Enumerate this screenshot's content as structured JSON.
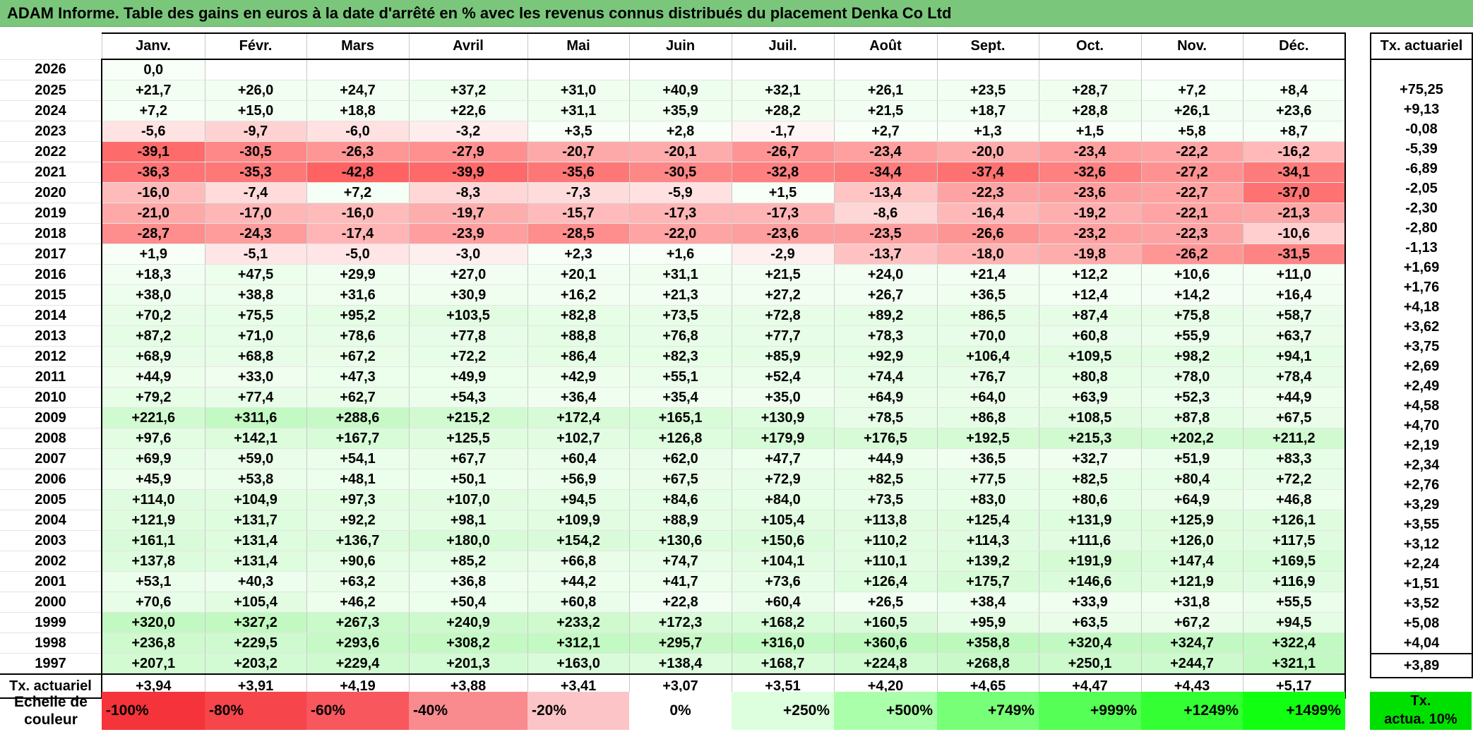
{
  "title": "ADAM Informe. Table des gains en euros à la date d'arrêté en % avec les revenus connus distribués du placement Denka Co Ltd",
  "months": [
    "Janv.",
    "Févr.",
    "Mars",
    "Avril",
    "Mai",
    "Juin",
    "Juil.",
    "Août",
    "Sept.",
    "Oct.",
    "Nov.",
    "Déc."
  ],
  "annual_header": "Tx. actuariel",
  "rows": [
    {
      "year": "2026",
      "values": [
        "0,0",
        "",
        "",
        "",
        "",
        "",
        "",
        "",
        "",
        "",
        "",
        ""
      ],
      "annual": ""
    },
    {
      "year": "2025",
      "values": [
        "+21,7",
        "+26,0",
        "+24,7",
        "+37,2",
        "+31,0",
        "+40,9",
        "+32,1",
        "+26,1",
        "+23,5",
        "+28,7",
        "+7,2",
        "+8,4"
      ],
      "annual": "+75,25"
    },
    {
      "year": "2024",
      "values": [
        "+7,2",
        "+15,0",
        "+18,8",
        "+22,6",
        "+31,1",
        "+35,9",
        "+28,2",
        "+21,5",
        "+18,7",
        "+28,8",
        "+26,1",
        "+23,6"
      ],
      "annual": "+9,13"
    },
    {
      "year": "2023",
      "values": [
        "-5,6",
        "-9,7",
        "-6,0",
        "-3,2",
        "+3,5",
        "+2,8",
        "-1,7",
        "+2,7",
        "+1,3",
        "+1,5",
        "+5,8",
        "+8,7"
      ],
      "annual": "-0,08"
    },
    {
      "year": "2022",
      "values": [
        "-39,1",
        "-30,5",
        "-26,3",
        "-27,9",
        "-20,7",
        "-20,1",
        "-26,7",
        "-23,4",
        "-20,0",
        "-23,4",
        "-22,2",
        "-16,2"
      ],
      "annual": "-5,39"
    },
    {
      "year": "2021",
      "values": [
        "-36,3",
        "-35,3",
        "-42,8",
        "-39,9",
        "-35,6",
        "-30,5",
        "-32,8",
        "-34,4",
        "-37,4",
        "-32,6",
        "-27,2",
        "-34,1"
      ],
      "annual": "-6,89"
    },
    {
      "year": "2020",
      "values": [
        "-16,0",
        "-7,4",
        "+7,2",
        "-8,3",
        "-7,3",
        "-5,9",
        "+1,5",
        "-13,4",
        "-22,3",
        "-23,6",
        "-22,7",
        "-37,0"
      ],
      "annual": "-2,05"
    },
    {
      "year": "2019",
      "values": [
        "-21,0",
        "-17,0",
        "-16,0",
        "-19,7",
        "-15,7",
        "-17,3",
        "-17,3",
        "-8,6",
        "-16,4",
        "-19,2",
        "-22,1",
        "-21,3"
      ],
      "annual": "-2,30"
    },
    {
      "year": "2018",
      "values": [
        "-28,7",
        "-24,3",
        "-17,4",
        "-23,9",
        "-28,5",
        "-22,0",
        "-23,6",
        "-23,5",
        "-26,6",
        "-23,2",
        "-22,3",
        "-10,6"
      ],
      "annual": "-2,80"
    },
    {
      "year": "2017",
      "values": [
        "+1,9",
        "-5,1",
        "-5,0",
        "-3,0",
        "+2,3",
        "+1,6",
        "-2,9",
        "-13,7",
        "-18,0",
        "-19,8",
        "-26,2",
        "-31,5"
      ],
      "annual": "-1,13"
    },
    {
      "year": "2016",
      "values": [
        "+18,3",
        "+47,5",
        "+29,9",
        "+27,0",
        "+20,1",
        "+31,1",
        "+21,5",
        "+24,0",
        "+21,4",
        "+12,2",
        "+10,6",
        "+11,0"
      ],
      "annual": "+1,69"
    },
    {
      "year": "2015",
      "values": [
        "+38,0",
        "+38,8",
        "+31,6",
        "+30,9",
        "+16,2",
        "+21,3",
        "+27,2",
        "+26,7",
        "+36,5",
        "+12,4",
        "+14,2",
        "+16,4"
      ],
      "annual": "+1,76"
    },
    {
      "year": "2014",
      "values": [
        "+70,2",
        "+75,5",
        "+95,2",
        "+103,5",
        "+82,8",
        "+73,5",
        "+72,8",
        "+89,2",
        "+86,5",
        "+87,4",
        "+75,8",
        "+58,7"
      ],
      "annual": "+4,18"
    },
    {
      "year": "2013",
      "values": [
        "+87,2",
        "+71,0",
        "+78,6",
        "+77,8",
        "+88,8",
        "+76,8",
        "+77,7",
        "+78,3",
        "+70,0",
        "+60,8",
        "+55,9",
        "+63,7"
      ],
      "annual": "+3,62"
    },
    {
      "year": "2012",
      "values": [
        "+68,9",
        "+68,8",
        "+67,2",
        "+72,2",
        "+86,4",
        "+82,3",
        "+85,9",
        "+92,9",
        "+106,4",
        "+109,5",
        "+98,2",
        "+94,1"
      ],
      "annual": "+3,75"
    },
    {
      "year": "2011",
      "values": [
        "+44,9",
        "+33,0",
        "+47,3",
        "+49,9",
        "+42,9",
        "+55,1",
        "+52,4",
        "+74,4",
        "+76,7",
        "+80,8",
        "+78,0",
        "+78,4"
      ],
      "annual": "+2,69"
    },
    {
      "year": "2010",
      "values": [
        "+79,2",
        "+77,4",
        "+62,7",
        "+54,3",
        "+36,4",
        "+35,4",
        "+35,0",
        "+64,9",
        "+64,0",
        "+63,9",
        "+52,3",
        "+44,9"
      ],
      "annual": "+2,49"
    },
    {
      "year": "2009",
      "values": [
        "+221,6",
        "+311,6",
        "+288,6",
        "+215,2",
        "+172,4",
        "+165,1",
        "+130,9",
        "+78,5",
        "+86,8",
        "+108,5",
        "+87,8",
        "+67,5"
      ],
      "annual": "+4,58"
    },
    {
      "year": "2008",
      "values": [
        "+97,6",
        "+142,1",
        "+167,7",
        "+125,5",
        "+102,7",
        "+126,8",
        "+179,9",
        "+176,5",
        "+192,5",
        "+215,3",
        "+202,2",
        "+211,2"
      ],
      "annual": "+4,70"
    },
    {
      "year": "2007",
      "values": [
        "+69,9",
        "+59,0",
        "+54,1",
        "+67,7",
        "+60,4",
        "+62,0",
        "+47,7",
        "+44,9",
        "+36,5",
        "+32,7",
        "+51,9",
        "+83,3"
      ],
      "annual": "+2,19"
    },
    {
      "year": "2006",
      "values": [
        "+45,9",
        "+53,8",
        "+48,1",
        "+50,1",
        "+56,9",
        "+67,5",
        "+72,9",
        "+82,5",
        "+77,5",
        "+82,5",
        "+80,4",
        "+72,2"
      ],
      "annual": "+2,34"
    },
    {
      "year": "2005",
      "values": [
        "+114,0",
        "+104,9",
        "+97,3",
        "+107,0",
        "+94,5",
        "+84,6",
        "+84,0",
        "+73,5",
        "+83,0",
        "+80,6",
        "+64,9",
        "+46,8"
      ],
      "annual": "+2,76"
    },
    {
      "year": "2004",
      "values": [
        "+121,9",
        "+131,7",
        "+92,2",
        "+98,1",
        "+109,9",
        "+88,9",
        "+105,4",
        "+113,8",
        "+125,4",
        "+131,9",
        "+125,9",
        "+126,1"
      ],
      "annual": "+3,29"
    },
    {
      "year": "2003",
      "values": [
        "+161,1",
        "+131,4",
        "+136,7",
        "+180,0",
        "+154,2",
        "+130,6",
        "+150,6",
        "+110,2",
        "+114,3",
        "+111,6",
        "+126,0",
        "+117,5"
      ],
      "annual": "+3,55"
    },
    {
      "year": "2002",
      "values": [
        "+137,8",
        "+131,4",
        "+90,6",
        "+85,2",
        "+66,8",
        "+74,7",
        "+104,1",
        "+110,1",
        "+139,2",
        "+191,9",
        "+147,4",
        "+169,5"
      ],
      "annual": "+3,12"
    },
    {
      "year": "2001",
      "values": [
        "+53,1",
        "+40,3",
        "+63,2",
        "+36,8",
        "+44,2",
        "+41,7",
        "+73,6",
        "+126,4",
        "+175,7",
        "+146,6",
        "+121,9",
        "+116,9"
      ],
      "annual": "+2,24"
    },
    {
      "year": "2000",
      "values": [
        "+70,6",
        "+105,4",
        "+46,2",
        "+50,4",
        "+60,8",
        "+22,8",
        "+60,4",
        "+26,5",
        "+38,4",
        "+33,9",
        "+31,8",
        "+55,5"
      ],
      "annual": "+1,51"
    },
    {
      "year": "1999",
      "values": [
        "+320,0",
        "+327,2",
        "+267,3",
        "+240,9",
        "+233,2",
        "+172,3",
        "+168,2",
        "+160,5",
        "+95,9",
        "+63,5",
        "+67,2",
        "+94,5"
      ],
      "annual": "+3,52"
    },
    {
      "year": "1998",
      "values": [
        "+236,8",
        "+229,5",
        "+293,6",
        "+308,2",
        "+312,1",
        "+295,7",
        "+316,0",
        "+360,6",
        "+358,8",
        "+320,4",
        "+324,7",
        "+322,4"
      ],
      "annual": "+5,08"
    },
    {
      "year": "1997",
      "values": [
        "+207,1",
        "+203,2",
        "+229,4",
        "+201,3",
        "+163,0",
        "+138,4",
        "+168,7",
        "+224,8",
        "+268,8",
        "+250,1",
        "+244,7",
        "+321,1"
      ],
      "annual": "+4,04"
    }
  ],
  "footer": {
    "label": "Tx. actuariel",
    "values": [
      "+3,94",
      "+3,91",
      "+4,19",
      "+3,88",
      "+3,41",
      "+3,07",
      "+3,51",
      "+4,20",
      "+4,65",
      "+4,47",
      "+4,43",
      "+5,17"
    ],
    "annual": "+3,89"
  },
  "scale": {
    "label_line1": "Echelle de",
    "label_line2": "couleur",
    "swatches": [
      {
        "text": "-100%",
        "color": "#f5333a"
      },
      {
        "text": "-80%",
        "color": "#f6454b"
      },
      {
        "text": "-60%",
        "color": "#f7575d"
      },
      {
        "text": "-40%",
        "color": "#f98a8e"
      },
      {
        "text": "-20%",
        "color": "#fcc4c6"
      },
      {
        "text": "0%",
        "color": "#ffffff"
      },
      {
        "text": "+250%",
        "color": "#ddffdd"
      },
      {
        "text": "+500%",
        "color": "#aaffaa"
      },
      {
        "text": "+749%",
        "color": "#77ff77"
      },
      {
        "text": "+999%",
        "color": "#55ff55"
      },
      {
        "text": "+1249%",
        "color": "#33ff33"
      },
      {
        "text": "+1499%",
        "color": "#11ff11"
      }
    ],
    "annual_line1": "Tx.",
    "annual_line2": "actua. 10%",
    "annual_color": "#00e000"
  }
}
